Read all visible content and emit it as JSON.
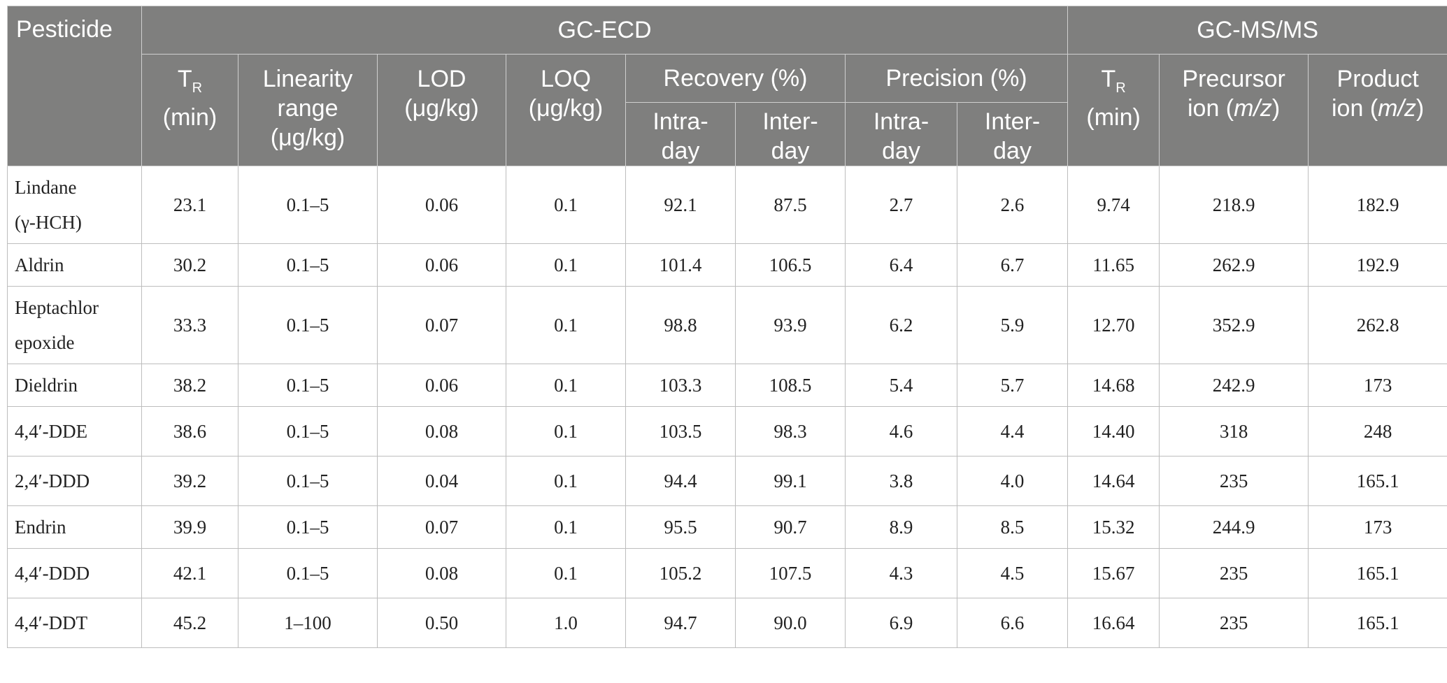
{
  "header": {
    "pesticide": "Pesticide",
    "gc_ecd": "GC-ECD",
    "gc_msms": "GC-MS/MS",
    "tr_main": "T",
    "tr_sub": "R",
    "tr_unit": "(min)",
    "linearity_line1": "Linearity",
    "linearity_line2": "range",
    "linearity_line3": "(μg/kg)",
    "lod_line1": "LOD",
    "lod_line2": "(μg/kg)",
    "loq_line1": "LOQ",
    "loq_line2": "(μg/kg)",
    "recovery": "Recovery (%)",
    "precision": "Precision (%)",
    "intra_line1": "Intra-",
    "intra_line2": "day",
    "inter_line1": "Inter-",
    "inter_line2": "day",
    "ms_tr_main": "T",
    "ms_tr_sub": "R",
    "ms_tr_unit": "(min)",
    "precursor_line1": "Precursor",
    "precursor_line2a": "ion (",
    "precursor_mz": "m/z",
    "precursor_line2b": ")",
    "product_line1": "Product",
    "product_line2a": "ion (",
    "product_mz": "m/z",
    "product_line2b": ")"
  },
  "rows": [
    {
      "name1": "Lindane",
      "name2": "(γ-HCH)",
      "tr": "23.1",
      "lin": "0.1–5",
      "lod": "0.06",
      "loq": "0.1",
      "rec_intra": "92.1",
      "rec_inter": "87.5",
      "pre_intra": "2.7",
      "pre_inter": "2.6",
      "ms_tr": "9.74",
      "precursor": "218.9",
      "product": "182.9"
    },
    {
      "name1": "Aldrin",
      "name2": "",
      "tr": "30.2",
      "lin": "0.1–5",
      "lod": "0.06",
      "loq": "0.1",
      "rec_intra": "101.4",
      "rec_inter": "106.5",
      "pre_intra": "6.4",
      "pre_inter": "6.7",
      "ms_tr": "11.65",
      "precursor": "262.9",
      "product": "192.9"
    },
    {
      "name1": "Heptachlor",
      "name2": "epoxide",
      "tr": "33.3",
      "lin": "0.1–5",
      "lod": "0.07",
      "loq": "0.1",
      "rec_intra": "98.8",
      "rec_inter": "93.9",
      "pre_intra": "6.2",
      "pre_inter": "5.9",
      "ms_tr": "12.70",
      "precursor": "352.9",
      "product": "262.8"
    },
    {
      "name1": "Dieldrin",
      "name2": "",
      "tr": "38.2",
      "lin": "0.1–5",
      "lod": "0.06",
      "loq": "0.1",
      "rec_intra": "103.3",
      "rec_inter": "108.5",
      "pre_intra": "5.4",
      "pre_inter": "5.7",
      "ms_tr": "14.68",
      "precursor": "242.9",
      "product": "173"
    },
    {
      "name1": "4,4′-DDE",
      "name2": "",
      "tr": "38.6",
      "lin": "0.1–5",
      "lod": "0.08",
      "loq": "0.1",
      "rec_intra": "103.5",
      "rec_inter": "98.3",
      "pre_intra": "4.6",
      "pre_inter": "4.4",
      "ms_tr": "14.40",
      "precursor": "318",
      "product": "248"
    },
    {
      "name1": "2,4′-DDD",
      "name2": "",
      "tr": "39.2",
      "lin": "0.1–5",
      "lod": "0.04",
      "loq": "0.1",
      "rec_intra": "94.4",
      "rec_inter": "99.1",
      "pre_intra": "3.8",
      "pre_inter": "4.0",
      "ms_tr": "14.64",
      "precursor": "235",
      "product": "165.1"
    },
    {
      "name1": "Endrin",
      "name2": "",
      "tr": "39.9",
      "lin": "0.1–5",
      "lod": "0.07",
      "loq": "0.1",
      "rec_intra": "95.5",
      "rec_inter": "90.7",
      "pre_intra": "8.9",
      "pre_inter": "8.5",
      "ms_tr": "15.32",
      "precursor": "244.9",
      "product": "173"
    },
    {
      "name1": "4,4′-DDD",
      "name2": "",
      "tr": "42.1",
      "lin": "0.1–5",
      "lod": "0.08",
      "loq": "0.1",
      "rec_intra": "105.2",
      "rec_inter": "107.5",
      "pre_intra": "4.3",
      "pre_inter": "4.5",
      "ms_tr": "15.67",
      "precursor": "235",
      "product": "165.1"
    },
    {
      "name1": "4,4′-DDT",
      "name2": "",
      "tr": "45.2",
      "lin": "1–100",
      "lod": "0.50",
      "loq": "1.0",
      "rec_intra": "94.7",
      "rec_inter": "90.0",
      "pre_intra": "6.9",
      "pre_inter": "6.6",
      "ms_tr": "16.64",
      "precursor": "235",
      "product": "165.1"
    }
  ]
}
